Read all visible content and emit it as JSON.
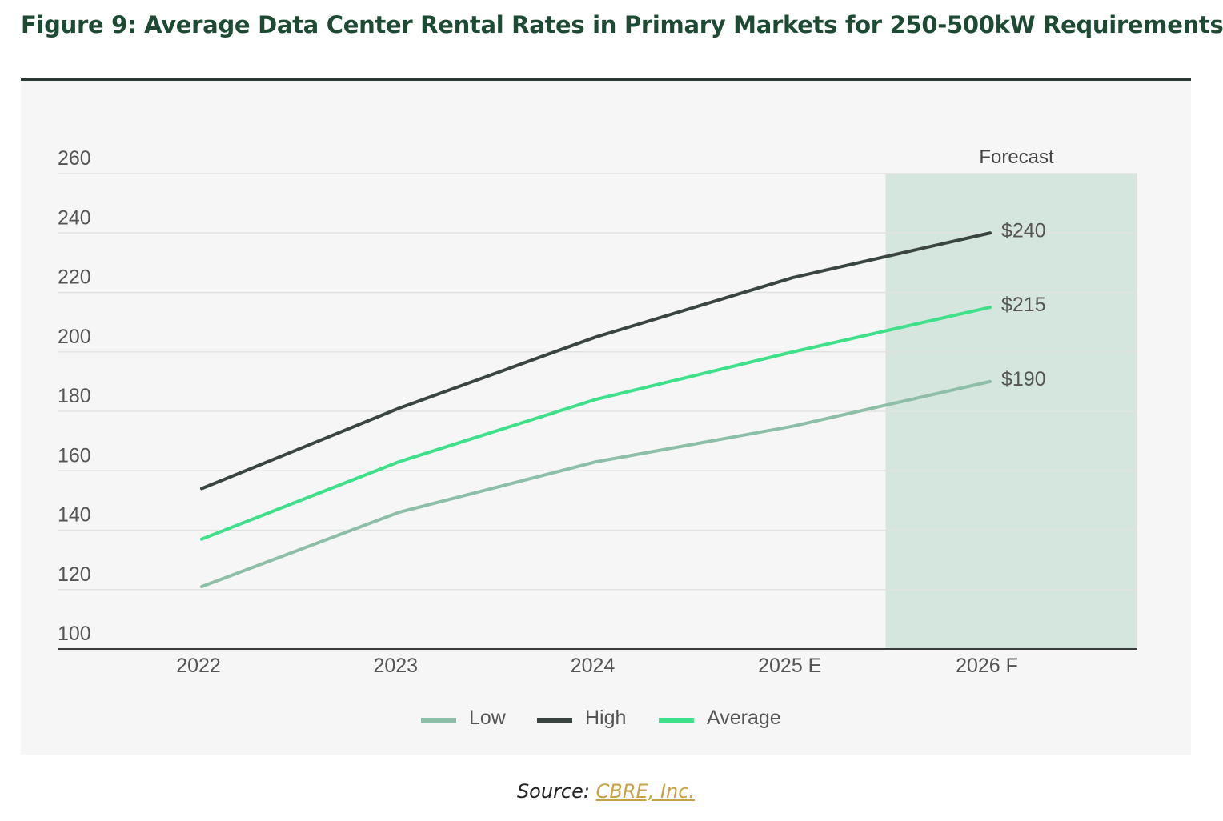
{
  "title": "Figure 9: Average Data Center Rental Rates in Primary Markets for 250-500kW Requirements",
  "source": {
    "prefix": "Source:",
    "link_text": "CBRE, Inc."
  },
  "colors": {
    "low": "#8dbfa8",
    "high": "#3a4541",
    "average": "#3ee08a",
    "forecast_band": "#d5e6de",
    "title": "#1c4a33"
  },
  "chart_data": {
    "type": "line",
    "title": "Figure 9: Average Data Center Rental Rates in Primary Markets for 250-500kW Requirements",
    "categories": [
      "2022",
      "2023",
      "2024",
      "2025 E",
      "2026 F"
    ],
    "series": [
      {
        "key": "low",
        "name": "Low",
        "values": [
          121,
          146,
          163,
          175,
          190
        ]
      },
      {
        "key": "high",
        "name": "High",
        "values": [
          154,
          181,
          205,
          225,
          240
        ]
      },
      {
        "key": "average",
        "name": "Average",
        "values": [
          137,
          163,
          184,
          200,
          215
        ]
      }
    ],
    "end_labels": {
      "high": "$240",
      "average": "$215",
      "low": "$190"
    },
    "ylim": [
      100,
      260
    ],
    "yticks": [
      "100",
      "120",
      "140",
      "160",
      "180",
      "200",
      "220",
      "240",
      "260"
    ],
    "grid": true,
    "forecast": {
      "label": "Forecast",
      "start_category": "2025 E",
      "end_category": "2026 F"
    },
    "legend_order": [
      "low",
      "high",
      "average"
    ],
    "legend_position": "bottom-center"
  }
}
